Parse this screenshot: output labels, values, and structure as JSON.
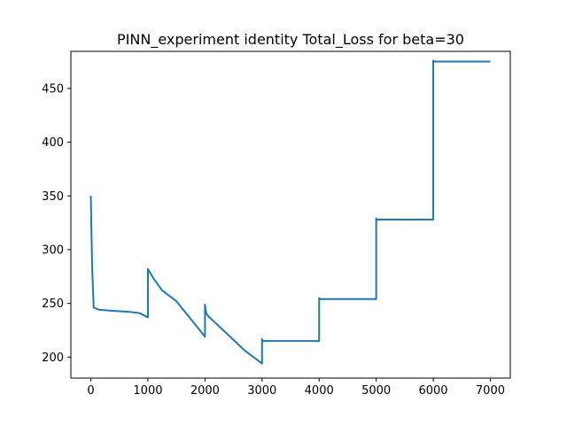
{
  "chart_data": {
    "type": "line",
    "title": "PINN_experiment identity Total_Loss for beta=30",
    "xlabel": "",
    "ylabel": "",
    "xlim": [
      -350,
      7350
    ],
    "ylim": [
      180.5,
      484.5
    ],
    "x_ticks": [
      0,
      1000,
      2000,
      3000,
      4000,
      5000,
      6000,
      7000
    ],
    "y_ticks": [
      200,
      250,
      300,
      350,
      400,
      450
    ],
    "grid": false,
    "legend": "none",
    "series": [
      {
        "color": "#1f77b4",
        "x": [
          0,
          10,
          25,
          50,
          150,
          400,
          700,
          850,
          1000,
          1000,
          1100,
          1250,
          1500,
          2000,
          2000,
          2010,
          2030,
          2060,
          2100,
          2500,
          2700,
          3000,
          3000,
          3010,
          3030,
          4000,
          4000,
          4010,
          4050,
          5000,
          5000,
          5020,
          6000,
          6000,
          6020,
          7000
        ],
        "y": [
          350,
          318,
          280,
          246,
          244,
          243,
          242,
          241,
          237,
          282,
          273,
          262,
          252,
          219,
          249,
          244,
          240,
          238,
          236,
          216,
          206,
          194,
          217,
          215,
          215,
          215,
          255,
          254,
          254,
          254,
          329,
          328,
          328,
          476,
          475,
          475
        ]
      }
    ]
  }
}
